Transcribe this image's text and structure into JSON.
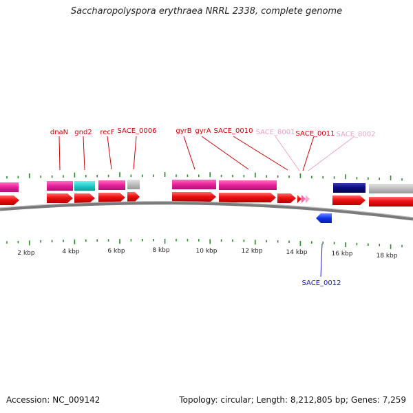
{
  "title": "Saccharopolyspora erythraea NRRL 2338, complete genome",
  "accession": "Accession: NC_009142",
  "summary": "Topology: circular; Length: 8,212,805 bp; Genes: 7,259",
  "colors": {
    "gene_label": "#cc0000",
    "pseudogene_label": "#f0a0c8",
    "reverse_label": "#1a1acc",
    "gene_arrow": "#ee1111",
    "cds_magenta": "#e8219a",
    "cds_cyan": "#22cccc",
    "cds_grey": "#bbbbbb",
    "cds_navy": "#0a0a80",
    "reverse_arrow": "#1133ee",
    "tick": "#2a8a2a",
    "backbone": "#888888"
  },
  "scale": {
    "unit": "kbp",
    "labels": [
      "2 kbp",
      "4 kbp",
      "6 kbp",
      "8 kbp",
      "10 kbp",
      "12 kbp",
      "14 kbp",
      "16 kbp",
      "18 kbp"
    ]
  },
  "gene_labels": [
    {
      "id": "dnaN",
      "label": "dnaN",
      "type": "gene"
    },
    {
      "id": "gnd2",
      "label": "gnd2",
      "type": "gene"
    },
    {
      "id": "recF",
      "label": "recF",
      "type": "gene"
    },
    {
      "id": "sace-0006",
      "label": "SACE_0006",
      "type": "gene"
    },
    {
      "id": "gyrB",
      "label": "gyrB",
      "type": "gene"
    },
    {
      "id": "gyrA",
      "label": "gyrA",
      "type": "gene"
    },
    {
      "id": "sace-0010",
      "label": "SACE_0010",
      "type": "gene"
    },
    {
      "id": "sace-8001",
      "label": "SACE_8001",
      "type": "pseudo"
    },
    {
      "id": "sace-0011",
      "label": "SACE_0011",
      "type": "gene"
    },
    {
      "id": "sace-8002",
      "label": "SACE_8002",
      "type": "pseudo"
    },
    {
      "id": "sace-0012",
      "label": "SACE_0012",
      "type": "reverse"
    }
  ]
}
